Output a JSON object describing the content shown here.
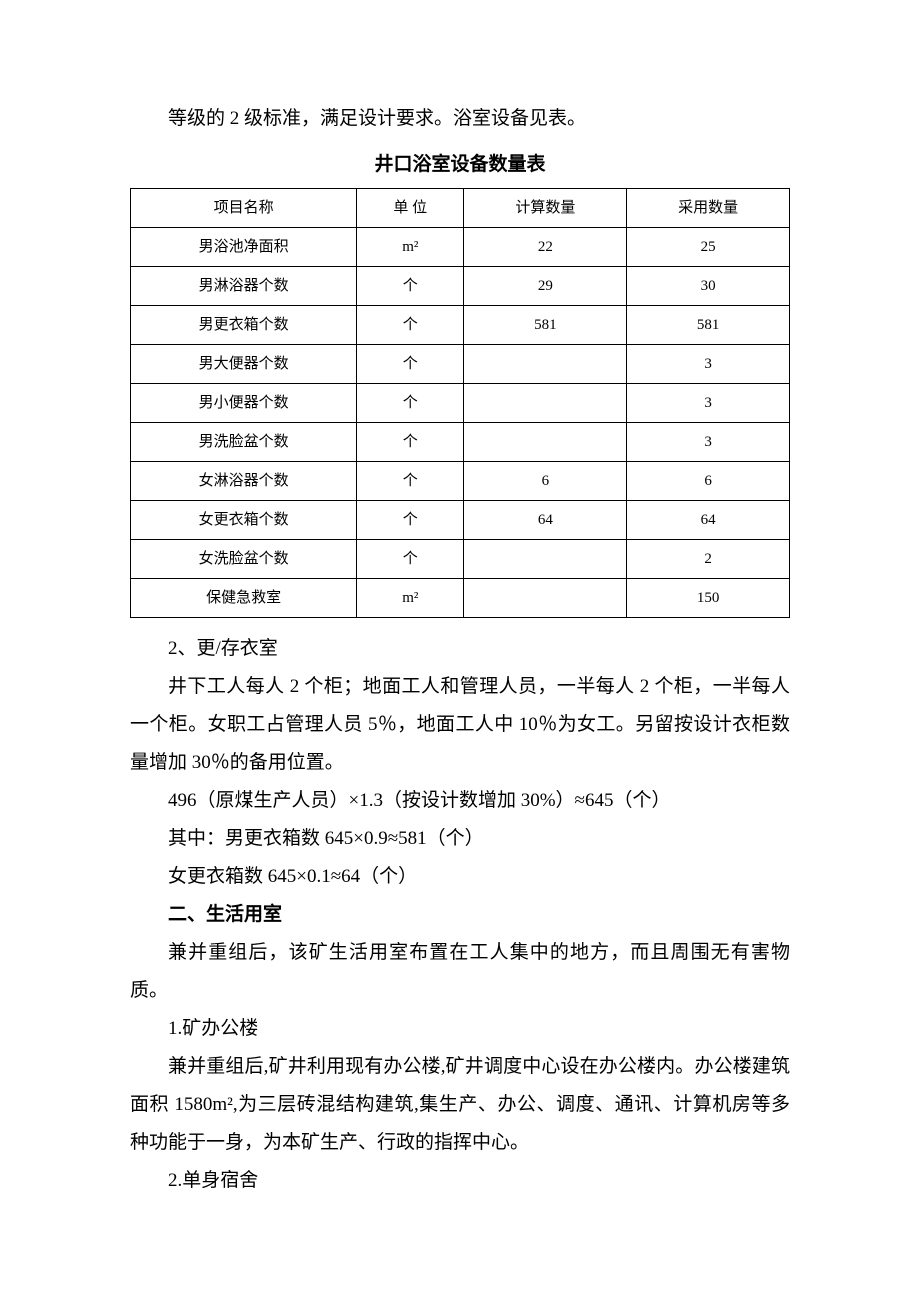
{
  "intro": "等级的 2 级标准，满足设计要求。浴室设备见表。",
  "table": {
    "title": "井口浴室设备数量表",
    "columns": [
      "项目名称",
      "单 位",
      "计算数量",
      "采用数量"
    ],
    "col_widths": [
      "25%",
      "25%",
      "25%",
      "25%"
    ],
    "rows": [
      {
        "name": "男浴池净面积",
        "unit": "m²",
        "calc": "22",
        "used": "25"
      },
      {
        "name": "男淋浴器个数",
        "unit": "个",
        "calc": "29",
        "used": "30"
      },
      {
        "name": "男更衣箱个数",
        "unit": "个",
        "calc": "581",
        "used": "581"
      },
      {
        "name": "男大便器个数",
        "unit": "个",
        "calc": "",
        "used": "3"
      },
      {
        "name": "男小便器个数",
        "unit": "个",
        "calc": "",
        "used": "3"
      },
      {
        "name": "男洗脸盆个数",
        "unit": "个",
        "calc": "",
        "used": "3"
      },
      {
        "name": "女淋浴器个数",
        "unit": "个",
        "calc": "6",
        "used": "6"
      },
      {
        "name": "女更衣箱个数",
        "unit": "个",
        "calc": "64",
        "used": "64"
      },
      {
        "name": "女洗脸盆个数",
        "unit": "个",
        "calc": "",
        "used": "2"
      },
      {
        "name": "保健急救室",
        "unit": "m²",
        "calc": "",
        "used": "150"
      }
    ]
  },
  "sections": {
    "sub2_title": "2、更/存衣室",
    "sub2_p1": "井下工人每人 2 个柜；地面工人和管理人员，一半每人 2 个柜，一半每人一个柜。女职工占管理人员 5％，地面工人中 10％为女工。另留按设计衣柜数量增加 30％的备用位置。",
    "sub2_calc1": "496（原煤生产人员）×1.3（按设计数增加 30%）≈645（个）",
    "sub2_calc2": "其中：男更衣箱数 645×0.9≈581（个）",
    "sub2_calc3": "女更衣箱数 645×0.1≈64（个）",
    "h2_title": "二、生活用室",
    "h2_p1": "兼并重组后，该矿生活用室布置在工人集中的地方，而且周围无有害物质。",
    "sub1_title": "1.矿办公楼",
    "sub1_p1": "兼并重组后,矿井利用现有办公楼,矿井调度中心设在办公楼内。办公楼建筑面积 1580m²,为三层砖混结构建筑,集生产、办公、调度、通讯、计算机房等多种功能于一身，为本矿生产、行政的指挥中心。",
    "sub2b_title": "2.单身宿舍"
  },
  "styling": {
    "body_fontsize": 19,
    "table_fontsize": 15,
    "line_height": 2.0,
    "text_color": "#000000",
    "border_color": "#000000",
    "background_color": "#ffffff"
  }
}
